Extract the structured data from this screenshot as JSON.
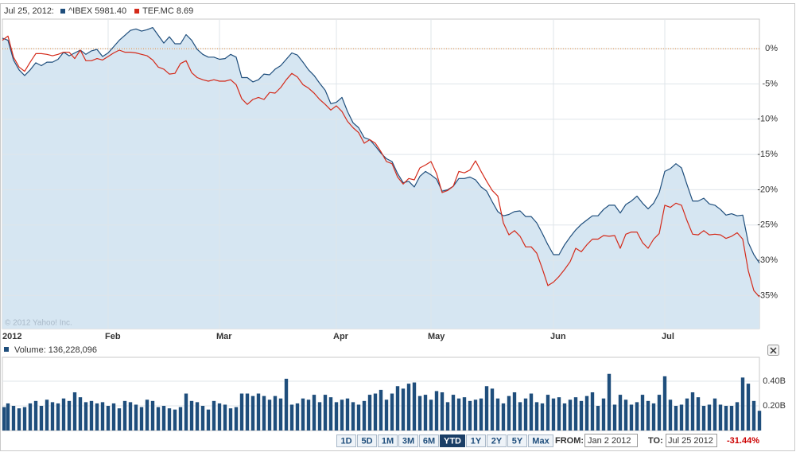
{
  "header": {
    "date": "Jul 25, 2012:"
  },
  "chart_data": [
    {
      "type": "line",
      "watermark": "© 2012 Yahoo! Inc.",
      "categories": [
        "2012",
        null,
        null,
        null,
        null,
        null,
        null,
        null,
        null,
        null,
        null,
        null,
        null,
        null,
        null,
        null,
        null,
        null,
        null,
        "Feb",
        null,
        null,
        null,
        null,
        null,
        null,
        null,
        null,
        null,
        null,
        null,
        null,
        null,
        null,
        null,
        null,
        null,
        null,
        null,
        "Mar",
        null,
        null,
        null,
        null,
        null,
        null,
        null,
        null,
        null,
        null,
        null,
        null,
        null,
        null,
        null,
        null,
        null,
        null,
        null,
        null,
        "Apr",
        null,
        null,
        null,
        null,
        null,
        null,
        null,
        null,
        null,
        null,
        null,
        null,
        null,
        null,
        null,
        null,
        "May",
        null,
        null,
        null,
        null,
        null,
        null,
        null,
        null,
        null,
        null,
        null,
        null,
        null,
        null,
        null,
        null,
        null,
        null,
        null,
        null,
        null,
        "Jun",
        null,
        null,
        null,
        null,
        null,
        null,
        null,
        null,
        null,
        null,
        null,
        null,
        null,
        null,
        null,
        null,
        null,
        null,
        null,
        "Jul",
        null,
        null,
        null,
        null,
        null,
        null,
        null,
        null,
        null,
        null,
        null,
        null,
        null,
        null,
        null,
        null,
        null
      ],
      "series": [
        {
          "name": "^IBEX",
          "quote": "5981.40",
          "color": "#1f4e7c",
          "area": true,
          "area_color": "#d6e6f2",
          "values": [
            1.5,
            1.2,
            -1.6,
            -3.0,
            -3.8,
            -3.0,
            -2.0,
            -2.4,
            -1.9,
            -1.9,
            -1.5,
            -0.5,
            -1.0,
            -0.6,
            -0.2,
            -0.8,
            -0.3,
            -0.1,
            -1.1,
            -0.6,
            0.3,
            1.2,
            1.9,
            2.6,
            2.8,
            2.5,
            2.7,
            3.0,
            1.9,
            0.8,
            1.7,
            0.7,
            0.7,
            2.0,
            1.2,
            -0.1,
            -0.8,
            -1.2,
            -1.2,
            -1.5,
            -1.4,
            -0.8,
            -1.2,
            -4.1,
            -4.1,
            -4.7,
            -4.4,
            -3.6,
            -3.7,
            -2.9,
            -2.4,
            -1.5,
            -0.6,
            -0.9,
            -1.9,
            -3.0,
            -3.8,
            -4.9,
            -5.9,
            -7.8,
            -7.6,
            -6.9,
            -8.9,
            -10.5,
            -11.2,
            -12.6,
            -12.9,
            -13.8,
            -14.8,
            -15.6,
            -16.0,
            -17.7,
            -19.0,
            -18.8,
            -19.6,
            -18.1,
            -17.4,
            -17.9,
            -18.5,
            -20.2,
            -20.0,
            -19.5,
            -18.4,
            -18.4,
            -18.2,
            -18.6,
            -19.6,
            -20.2,
            -21.7,
            -23.1,
            -23.7,
            -23.5,
            -23.1,
            -23.0,
            -23.8,
            -23.8,
            -24.7,
            -26.2,
            -27.8,
            -29.2,
            -29.2,
            -27.8,
            -26.7,
            -25.7,
            -24.9,
            -24.3,
            -23.7,
            -23.7,
            -22.8,
            -22.2,
            -22.2,
            -23.3,
            -22.1,
            -21.6,
            -20.9,
            -21.9,
            -22.7,
            -21.9,
            -20.4,
            -17.4,
            -17.0,
            -16.3,
            -16.9,
            -19.3,
            -21.6,
            -21.6,
            -21.2,
            -22.0,
            -22.2,
            -22.8,
            -23.6,
            -23.4,
            -23.7,
            -23.6,
            -27.5,
            -29.2,
            -30.4
          ]
        },
        {
          "name": "TEF.MC",
          "quote": "8.69",
          "color": "#d42a1a",
          "area": false,
          "values": [
            1.2,
            1.8,
            -1.2,
            -2.6,
            -3.2,
            -1.9,
            -0.7,
            -0.7,
            -0.8,
            -1.0,
            -0.8,
            -0.5,
            -0.5,
            -1.4,
            -0.2,
            -1.7,
            -1.7,
            -1.4,
            -1.6,
            -1.1,
            -0.6,
            -0.2,
            -0.5,
            -0.5,
            -0.6,
            -0.8,
            -1.0,
            -1.6,
            -2.6,
            -2.9,
            -3.6,
            -3.5,
            -2.1,
            -1.7,
            -3.4,
            -4.1,
            -4.4,
            -4.6,
            -4.4,
            -4.6,
            -4.6,
            -4.4,
            -5.1,
            -7.1,
            -7.9,
            -7.2,
            -6.9,
            -7.2,
            -6.2,
            -6.3,
            -5.5,
            -4.4,
            -3.5,
            -4.0,
            -5.1,
            -5.6,
            -6.3,
            -7.2,
            -7.9,
            -8.7,
            -8.1,
            -8.9,
            -10.3,
            -11.2,
            -11.9,
            -13.4,
            -12.9,
            -13.4,
            -14.6,
            -16.0,
            -16.3,
            -18.2,
            -19.2,
            -18.4,
            -18.6,
            -16.9,
            -16.5,
            -16.0,
            -17.7,
            -20.4,
            -20.1,
            -19.5,
            -17.4,
            -17.6,
            -17.2,
            -15.9,
            -17.4,
            -18.8,
            -20.1,
            -20.9,
            -24.7,
            -26.4,
            -25.8,
            -26.6,
            -28.1,
            -28.1,
            -29.0,
            -31.2,
            -33.6,
            -33.1,
            -32.3,
            -31.3,
            -30.2,
            -28.3,
            -28.8,
            -27.8,
            -27.0,
            -27.0,
            -26.5,
            -26.6,
            -26.5,
            -28.3,
            -26.3,
            -26.0,
            -26.0,
            -27.5,
            -28.3,
            -27.0,
            -26.2,
            -22.2,
            -22.5,
            -21.9,
            -22.2,
            -24.4,
            -26.3,
            -26.4,
            -25.8,
            -26.4,
            -26.3,
            -26.4,
            -26.9,
            -26.6,
            -26.1,
            -27.0,
            -31.5,
            -34.3,
            -35.2
          ]
        }
      ],
      "ylim": [
        -39.7,
        4.2
      ],
      "yticks": [
        {
          "value": 0,
          "label": "0%"
        },
        {
          "value": -5,
          "label": "-5%"
        },
        {
          "value": -10,
          "label": "-10%"
        },
        {
          "value": -15,
          "label": "-15%"
        },
        {
          "value": -20,
          "label": "-20%"
        },
        {
          "value": -25,
          "label": "-25%"
        },
        {
          "value": -30,
          "label": "-30%"
        },
        {
          "value": -35,
          "label": "-35%"
        }
      ],
      "reference_line": 0,
      "reference_color": "#e0873a",
      "grid": true
    },
    {
      "type": "bar",
      "title": "Volume: 136,228,096",
      "color": "#1f4e7c",
      "values": [
        0.19,
        0.22,
        0.2,
        0.18,
        0.19,
        0.22,
        0.24,
        0.2,
        0.25,
        0.23,
        0.22,
        0.26,
        0.24,
        0.31,
        0.27,
        0.23,
        0.24,
        0.22,
        0.23,
        0.2,
        0.22,
        0.18,
        0.24,
        0.23,
        0.21,
        0.19,
        0.25,
        0.24,
        0.19,
        0.2,
        0.18,
        0.17,
        0.19,
        0.3,
        0.24,
        0.23,
        0.2,
        0.17,
        0.24,
        0.22,
        0.21,
        0.18,
        0.19,
        0.3,
        0.3,
        0.28,
        0.3,
        0.28,
        0.25,
        0.28,
        0.26,
        0.42,
        0.21,
        0.22,
        0.26,
        0.25,
        0.29,
        0.23,
        0.29,
        0.27,
        0.23,
        0.25,
        0.26,
        0.23,
        0.21,
        0.24,
        0.29,
        0.3,
        0.33,
        0.25,
        0.3,
        0.36,
        0.34,
        0.38,
        0.39,
        0.28,
        0.29,
        0.25,
        0.32,
        0.31,
        0.23,
        0.29,
        0.26,
        0.27,
        0.24,
        0.25,
        0.26,
        0.36,
        0.34,
        0.26,
        0.22,
        0.28,
        0.31,
        0.23,
        0.26,
        0.3,
        0.23,
        0.22,
        0.29,
        0.26,
        0.27,
        0.22,
        0.25,
        0.27,
        0.24,
        0.28,
        0.31,
        0.2,
        0.26,
        0.46,
        0.21,
        0.29,
        0.25,
        0.21,
        0.23,
        0.29,
        0.24,
        0.22,
        0.29,
        0.44,
        0.25,
        0.2,
        0.21,
        0.26,
        0.31,
        0.27,
        0.2,
        0.21,
        0.26,
        0.21,
        0.2,
        0.2,
        0.23,
        0.43,
        0.38,
        0.24,
        0.16
      ],
      "ylim": [
        0,
        0.594
      ],
      "yticks": [
        {
          "value": 0.2,
          "label": "0.20B"
        },
        {
          "value": 0.4,
          "label": "0.40B"
        }
      ],
      "grid": true
    }
  ],
  "controls": {
    "ranges": [
      "1D",
      "5D",
      "1M",
      "3M",
      "6M",
      "YTD",
      "1Y",
      "2Y",
      "5Y",
      "Max"
    ],
    "active": 5,
    "from_label": "FROM:",
    "from": "Jan 2 2012",
    "to_label": "TO:",
    "to": "Jul 25 2012",
    "change": "-31.44%"
  }
}
